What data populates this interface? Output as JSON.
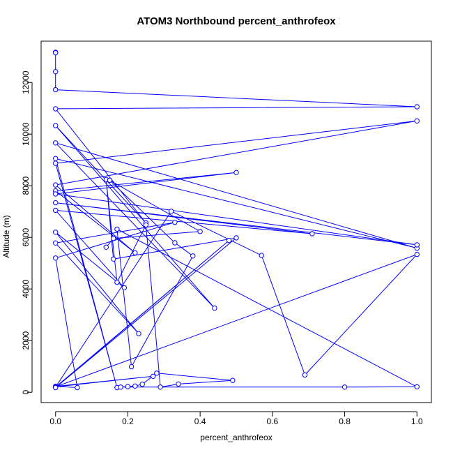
{
  "chart_data": {
    "type": "line",
    "title": "ATOM3 Northbound percent_anthrofeox",
    "xlabel": "percent_anthrofeox",
    "ylabel": "Altitude (m)",
    "xlim": [
      -0.04,
      1.04
    ],
    "ylim": [
      -400,
      13600
    ],
    "xticks": [
      "0.0",
      "0.2",
      "0.4",
      "0.6",
      "0.8",
      "1.0"
    ],
    "yticks": [
      "0",
      "2000",
      "4000",
      "6000",
      "8000",
      "10000",
      "12000"
    ],
    "grid": false,
    "legend": "none",
    "series_color": "#0000ff",
    "points": [
      [
        0.0,
        13170
      ],
      [
        0.0,
        13150
      ],
      [
        0.0,
        12420
      ],
      [
        0.0,
        11720
      ],
      [
        1.0,
        11060
      ],
      [
        0.0,
        10980
      ],
      [
        0.25,
        6560
      ],
      [
        0.0,
        10330
      ],
      [
        0.44,
        3260
      ],
      [
        0.0,
        9660
      ],
      [
        1.0,
        5580
      ],
      [
        0.0,
        9050
      ],
      [
        0.17,
        180
      ],
      [
        0.0,
        8870
      ],
      [
        1.0,
        10510
      ],
      [
        0.0,
        8030
      ],
      [
        0.22,
        5400
      ],
      [
        0.0,
        7800
      ],
      [
        0.5,
        8510
      ],
      [
        0.0,
        7680
      ],
      [
        1.0,
        5710
      ],
      [
        0.0,
        7340
      ],
      [
        0.71,
        6140
      ],
      [
        0.0,
        7050
      ],
      [
        0.19,
        4050
      ],
      [
        0.0,
        6200
      ],
      [
        0.23,
        2270
      ],
      [
        0.0,
        5780
      ],
      [
        0.33,
        6580
      ],
      [
        0.0,
        5200
      ],
      [
        0.06,
        180
      ],
      [
        0.0,
        230
      ],
      [
        0.27,
        620
      ],
      [
        0.0,
        210
      ],
      [
        1.0,
        5340
      ],
      [
        0.69,
        670
      ],
      [
        0.57,
        5300
      ],
      [
        0.32,
        7010
      ],
      [
        0.0,
        200
      ],
      [
        0.48,
        5880
      ],
      [
        0.0,
        180
      ],
      [
        0.5,
        5980
      ],
      [
        0.16,
        5160
      ],
      [
        0.14,
        8240
      ],
      [
        0.17,
        4260
      ],
      [
        0.25,
        6480
      ],
      [
        0.29,
        200
      ],
      [
        0.34,
        320
      ],
      [
        0.49,
        460
      ],
      [
        0.28,
        740
      ],
      [
        0.24,
        310
      ],
      [
        0.22,
        240
      ],
      [
        0.2,
        220
      ],
      [
        0.18,
        200
      ],
      [
        0.8,
        200
      ],
      [
        1.0,
        210
      ],
      [
        0.17,
        6320
      ],
      [
        0.21,
        990
      ],
      [
        0.38,
        5280
      ],
      [
        0.33,
        5790
      ],
      [
        0.15,
        8210
      ],
      [
        0.4,
        6230
      ],
      [
        0.16,
        5960
      ],
      [
        0.14,
        5620
      ]
    ]
  }
}
